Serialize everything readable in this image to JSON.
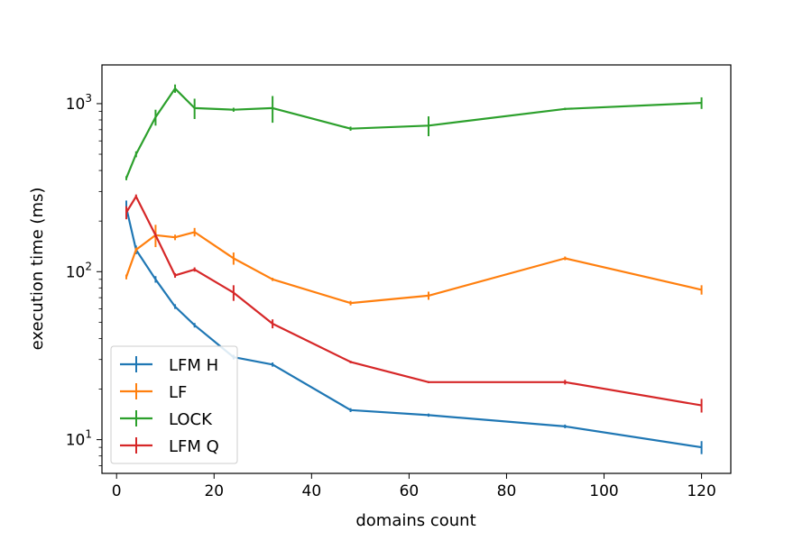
{
  "chart_data": {
    "type": "line",
    "title": "",
    "xlabel": "domains count",
    "ylabel": "execution time (ms)",
    "xlim": [
      -3,
      126
    ],
    "ylim": [
      6.3,
      1700
    ],
    "yscale": "log",
    "grid": false,
    "legend_position": "lower-left",
    "x_ticks": [
      0,
      20,
      40,
      60,
      80,
      100,
      120
    ],
    "x_tick_labels": [
      "0",
      "20",
      "40",
      "60",
      "80",
      "100",
      "120"
    ],
    "y_ticks": [
      10,
      100,
      1000
    ],
    "y_tick_labels": [
      {
        "base": "10",
        "exp": "1"
      },
      {
        "base": "10",
        "exp": "2"
      },
      {
        "base": "10",
        "exp": "3"
      }
    ],
    "series": [
      {
        "name": "LFM H",
        "color": "#1f77b4",
        "x": [
          2,
          4,
          8,
          12,
          16,
          24,
          32,
          48,
          64,
          92,
          120
        ],
        "y": [
          240,
          135,
          90,
          62,
          48,
          31,
          28,
          15,
          14,
          12,
          9
        ],
        "err": [
          25,
          8,
          4,
          2,
          1.5,
          1,
          0.8,
          0.4,
          0.3,
          0.3,
          0.8
        ]
      },
      {
        "name": "LF",
        "color": "#ff7f0e",
        "x": [
          2,
          4,
          8,
          12,
          16,
          24,
          32,
          48,
          64,
          92,
          120
        ],
        "y": [
          93,
          135,
          165,
          160,
          172,
          120,
          90,
          65,
          72,
          120,
          78
        ],
        "err": [
          3,
          4,
          25,
          6,
          10,
          10,
          2,
          2,
          4,
          3,
          5
        ]
      },
      {
        "name": "LOCK",
        "color": "#2ca02c",
        "x": [
          2,
          4,
          8,
          12,
          16,
          24,
          32,
          48,
          64,
          92,
          120
        ],
        "y": [
          360,
          500,
          830,
          1230,
          940,
          920,
          940,
          710,
          740,
          930,
          1010
        ],
        "err": [
          10,
          20,
          90,
          70,
          130,
          25,
          170,
          20,
          100,
          15,
          80
        ]
      },
      {
        "name": "LFM Q",
        "color": "#d62728",
        "x": [
          2,
          4,
          8,
          12,
          16,
          24,
          32,
          48,
          64,
          92,
          120
        ],
        "y": [
          225,
          280,
          165,
          95,
          103,
          75,
          49,
          29,
          22,
          22,
          16
        ],
        "err": [
          20,
          8,
          5,
          3,
          3,
          8,
          3,
          0.5,
          0.3,
          0.7,
          1.5
        ]
      }
    ]
  }
}
